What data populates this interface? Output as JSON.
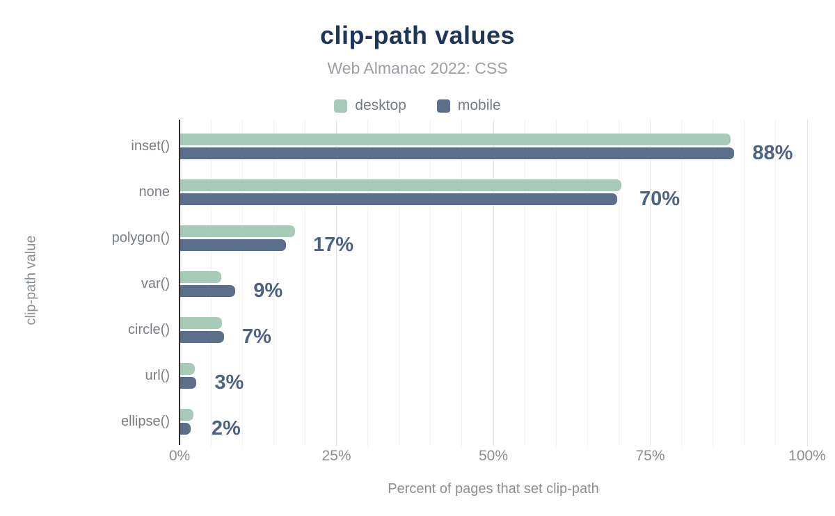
{
  "chart_data": {
    "type": "bar",
    "orientation": "horizontal",
    "title": "clip-path values",
    "subtitle": "Web Almanac 2022: CSS",
    "xlabel": "Percent of pages that set clip-path",
    "ylabel": "clip-path value",
    "xlim": [
      0,
      100
    ],
    "xtick_values": [
      0,
      25,
      50,
      75,
      100
    ],
    "xtick_labels": [
      "0%",
      "25%",
      "50%",
      "75%",
      "100%"
    ],
    "grid": {
      "minor_step": 5,
      "major_step": 25,
      "minor_color": "#f4f1f2",
      "major_color": "#e9e6e8"
    },
    "legend_position": "top",
    "categories": [
      "inset()",
      "none",
      "polygon()",
      "var()",
      "circle()",
      "url()",
      "ellipse()"
    ],
    "series": [
      {
        "name": "desktop",
        "color": "#a8cab9",
        "values": [
          87.8,
          70.4,
          18.4,
          6.6,
          6.8,
          2.4,
          2.2
        ]
      },
      {
        "name": "mobile",
        "color": "#5b6e8a",
        "values": [
          88.4,
          69.7,
          17.0,
          8.9,
          7.1,
          2.7,
          1.8
        ]
      }
    ],
    "value_labels": [
      "88%",
      "70%",
      "17%",
      "9%",
      "7%",
      "3%",
      "2%"
    ],
    "value_labels_refer_to": "mobile"
  },
  "colors": {
    "title": "#1f3557",
    "subtitle": "#9aa0a5",
    "value_label": "#4d6385",
    "axis_line": "#2e2e2e",
    "category_label": "#797e84",
    "tick_label": "#888d92",
    "background": "#ffffff"
  }
}
